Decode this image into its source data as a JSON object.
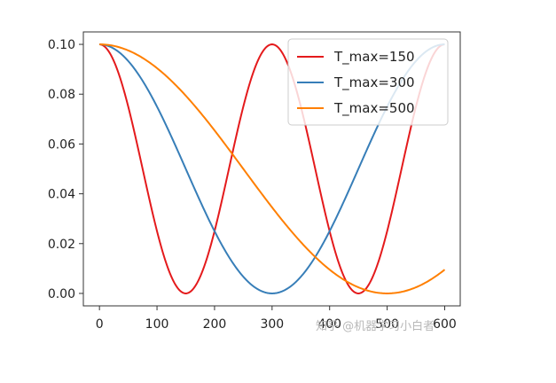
{
  "chart_data": {
    "type": "line",
    "title": "",
    "xlabel": "",
    "ylabel": "",
    "xlim": [
      -28,
      627
    ],
    "ylim": [
      -0.005,
      0.105
    ],
    "x_ticks": [
      0,
      100,
      200,
      300,
      400,
      500,
      600
    ],
    "x_tick_labels": [
      "0",
      "100",
      "200",
      "300",
      "400",
      "500",
      "600"
    ],
    "y_ticks": [
      0.0,
      0.02,
      0.04,
      0.06,
      0.08,
      0.1
    ],
    "y_tick_labels": [
      "0.00",
      "0.02",
      "0.04",
      "0.06",
      "0.08",
      "0.10"
    ],
    "grid": false,
    "legend_position": "top-right",
    "x_range": [
      0,
      600
    ],
    "series": [
      {
        "name": "T_max=150",
        "color": "#e41a1c",
        "formula": "0.1 * (1 + cos(pi * x / 150)) / 2",
        "T_max": 150
      },
      {
        "name": "T_max=300",
        "color": "#377eb8",
        "formula": "0.1 * (1 + cos(pi * x / 300)) / 2",
        "T_max": 300
      },
      {
        "name": "T_max=500",
        "color": "#ff7f00",
        "formula": "0.1 * (1 + cos(pi * x / 500)) / 2",
        "T_max": 500
      }
    ]
  },
  "watermark": "知乎 @机器学习小白者"
}
